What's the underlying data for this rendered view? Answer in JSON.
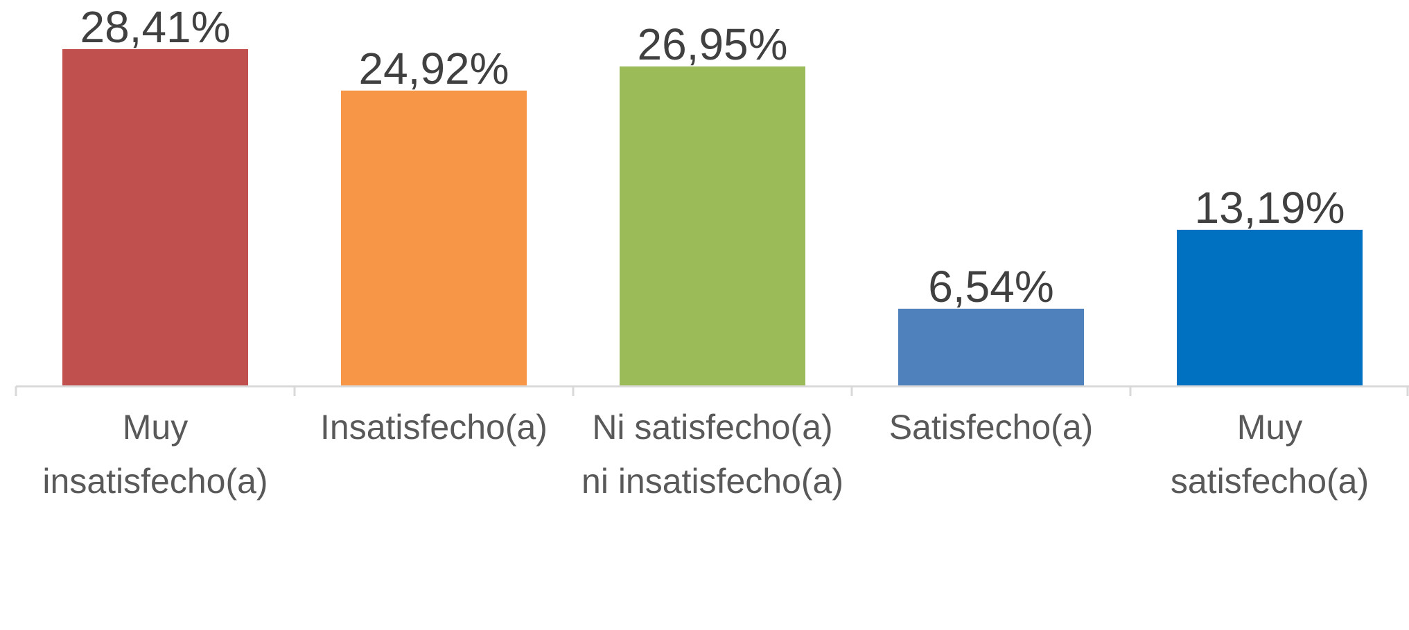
{
  "chart_data": {
    "type": "bar",
    "categories": [
      "Muy insatisfecho(a)",
      "Insatisfecho(a)",
      "Ni satisfecho(a) ni insatisfecho(a)",
      "Satisfecho(a)",
      "Muy satisfecho(a)"
    ],
    "values": [
      28.41,
      24.92,
      26.95,
      6.54,
      13.19
    ],
    "value_labels": [
      "28,41%",
      "24,92%",
      "26,95%",
      "6,54%",
      "13,19%"
    ],
    "colors": [
      "#c0504d",
      "#f79646",
      "#9bbb59",
      "#4f81bd",
      "#0070c0"
    ]
  }
}
